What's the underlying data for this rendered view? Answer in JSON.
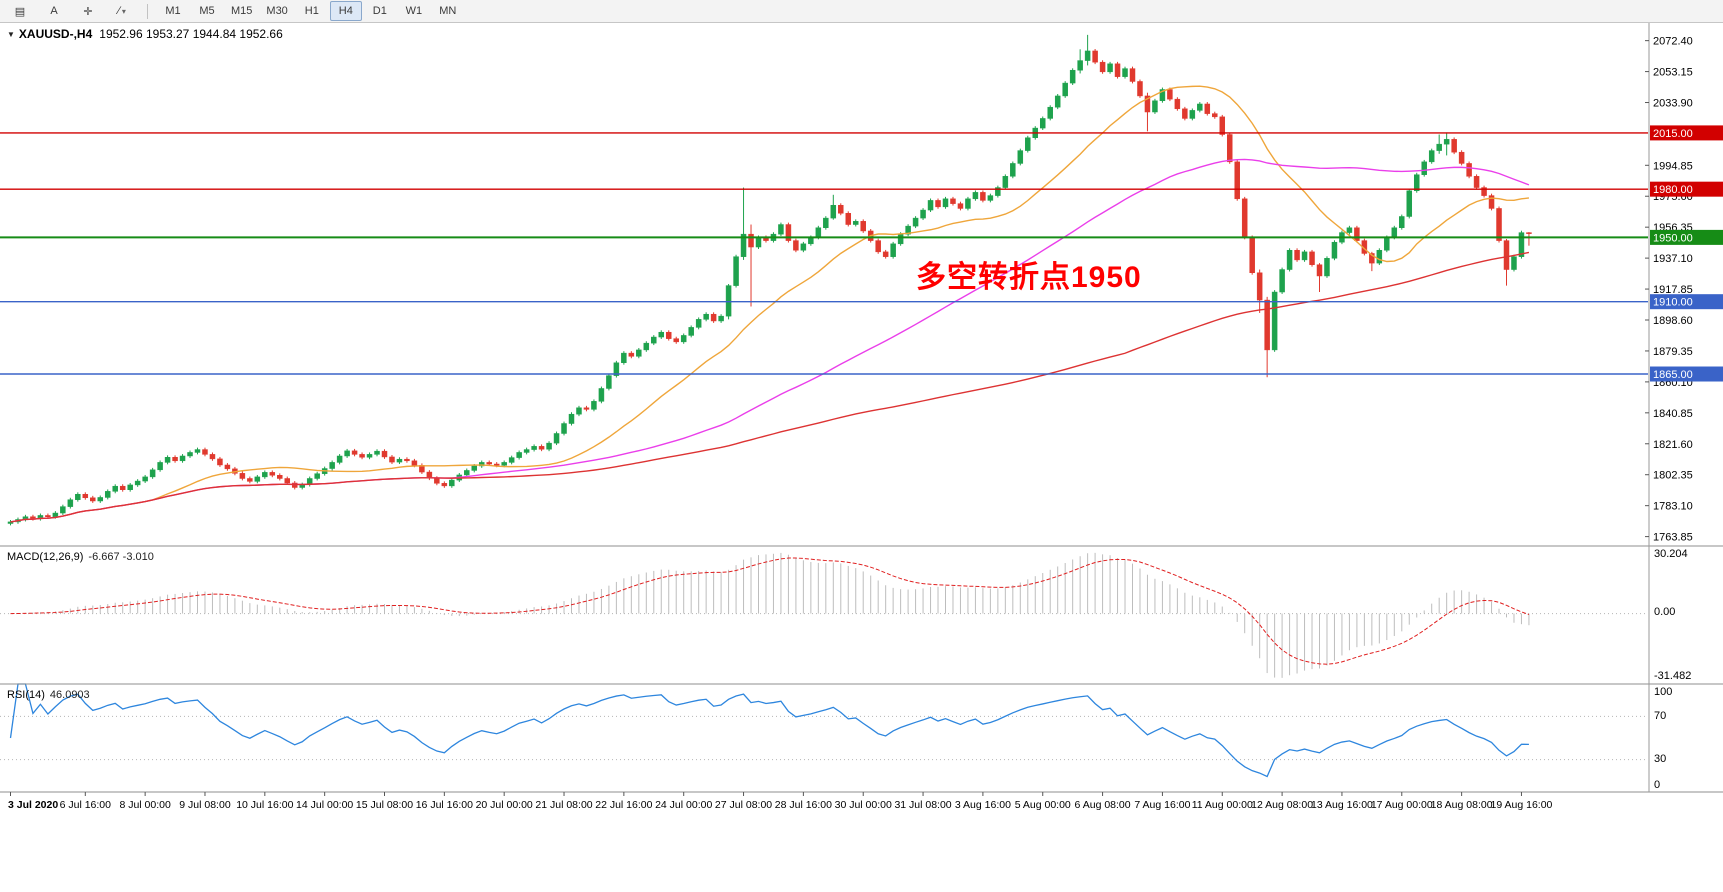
{
  "toolbar": {
    "icons": [
      {
        "name": "chart-list-icon",
        "glyph": "▤"
      },
      {
        "name": "text-a-icon",
        "glyph": "A"
      },
      {
        "name": "crosshair-icon",
        "glyph": "✛"
      },
      {
        "name": "line-studies-icon",
        "glyph": "∕",
        "caret": "▾"
      }
    ],
    "timeframes": [
      "M1",
      "M5",
      "M15",
      "M30",
      "H1",
      "H4",
      "D1",
      "W1",
      "MN"
    ],
    "active_timeframe": "H4"
  },
  "main": {
    "symbol_title": "XAUUSD-,H4",
    "ohlc": "1952.96 1953.27 1944.84 1952.66",
    "collapse_arrow": "▼",
    "annotation": "多空转折点1950",
    "annotation_color": "#ff0000"
  },
  "macd_panel": {
    "label": "MACD(12,26,9)",
    "values": "-6.667 -3.010",
    "scale_top": "30.204",
    "scale_zero": "0.00",
    "scale_bottom": "-31.482"
  },
  "rsi_panel": {
    "label": "RSI(14)",
    "value": "46.0903",
    "scale_100": "100",
    "scale_70": "70",
    "scale_30": "30",
    "scale_0": "0"
  },
  "chart_data": {
    "type": "candlestick",
    "symbol": "XAUUSD-",
    "timeframe": "H4",
    "colors": {
      "bull": "#1ea24d",
      "bear": "#e0392e",
      "macd_histogram": "#bdbdbd",
      "macd_signal": "#e02020",
      "rsi_line": "#2e86de",
      "dotted_level": "#b5b5b5"
    },
    "price_axis": {
      "min": 1758,
      "max": 2084,
      "ticks": [
        2072.4,
        2053.15,
        2033.9,
        1994.85,
        1975.6,
        1956.35,
        1937.1,
        1917.85,
        1898.6,
        1879.35,
        1860.1,
        1840.85,
        1821.6,
        1802.35,
        1783.1,
        1763.85
      ]
    },
    "levels": [
      {
        "value": 2015.0,
        "label": "2015.00",
        "color": "#d20000",
        "width": 1.4
      },
      {
        "value": 1980.0,
        "label": "1980.00",
        "color": "#d20000",
        "width": 1.4
      },
      {
        "value": 1950.0,
        "label": "1950.00",
        "color": "#168c16",
        "width": 2
      },
      {
        "value": 1910.0,
        "label": "1910.00",
        "color": "#3a63c8",
        "width": 1.4
      },
      {
        "value": 1865.0,
        "label": "1865.00",
        "color": "#3a63c8",
        "width": 1.4
      }
    ],
    "moving_averages": [
      {
        "name": "ma-fast",
        "period": 20,
        "color": "#efa63b"
      },
      {
        "name": "ma-mid",
        "period": 60,
        "color": "#ea3fea"
      },
      {
        "name": "ma-slow",
        "period": 150,
        "color": "#dd3333"
      }
    ],
    "macd": {
      "fast": 12,
      "slow": 26,
      "signal": 9,
      "scale_max": 30.204,
      "scale_min": -31.482
    },
    "rsi": {
      "period": 14,
      "levels": [
        70,
        30
      ]
    },
    "time_axis": [
      [
        0,
        "3 Jul 2020"
      ],
      [
        10,
        "6 Jul 16:00"
      ],
      [
        18,
        "8 Jul 00:00"
      ],
      [
        26,
        "9 Jul 08:00"
      ],
      [
        34,
        "10 Jul 16:00"
      ],
      [
        42,
        "14 Jul 00:00"
      ],
      [
        50,
        "15 Jul 08:00"
      ],
      [
        58,
        "16 Jul 16:00"
      ],
      [
        66,
        "20 Jul 00:00"
      ],
      [
        74,
        "21 Jul 08:00"
      ],
      [
        82,
        "22 Jul 16:00"
      ],
      [
        90,
        "24 Jul 00:00"
      ],
      [
        98,
        "27 Jul 08:00"
      ],
      [
        106,
        "28 Jul 16:00"
      ],
      [
        114,
        "30 Jul 00:00"
      ],
      [
        122,
        "31 Jul 08:00"
      ],
      [
        130,
        "3 Aug 16:00"
      ],
      [
        138,
        "5 Aug 00:00"
      ],
      [
        146,
        "6 Aug 08:00"
      ],
      [
        154,
        "7 Aug 16:00"
      ],
      [
        162,
        "11 Aug 00:00"
      ],
      [
        170,
        "12 Aug 08:00"
      ],
      [
        178,
        "13 Aug 16:00"
      ],
      [
        186,
        "17 Aug 00:00"
      ],
      [
        194,
        "18 Aug 08:00"
      ],
      [
        202,
        "19 Aug 16:00"
      ]
    ],
    "candles": {
      "open0": 1772.0,
      "closes": [
        1773,
        1774.5,
        1776.2,
        1775,
        1777,
        1776.2,
        1778.5,
        1782.5,
        1786.8,
        1790.2,
        1788,
        1786,
        1788.2,
        1792,
        1795.2,
        1793,
        1796,
        1798.4,
        1801,
        1805.4,
        1810,
        1813.2,
        1811,
        1814,
        1816.2,
        1818,
        1815,
        1812.2,
        1808.4,
        1806,
        1803.2,
        1800,
        1798.2,
        1801,
        1803.8,
        1802,
        1800,
        1797.2,
        1794.4,
        1796.2,
        1800,
        1803,
        1806.2,
        1810,
        1814,
        1817.2,
        1815,
        1813.2,
        1815,
        1817,
        1813.4,
        1810.2,
        1812,
        1811,
        1808.2,
        1804,
        1800.2,
        1797,
        1795.4,
        1799,
        1802.2,
        1805,
        1807.8,
        1810,
        1809,
        1808.2,
        1810,
        1813,
        1816.2,
        1818,
        1820,
        1818.2,
        1822,
        1828,
        1834.2,
        1840,
        1844,
        1843,
        1848,
        1856,
        1864,
        1872,
        1878,
        1876,
        1880,
        1884.2,
        1888,
        1891,
        1887,
        1885,
        1889,
        1894,
        1899,
        1902.2,
        1898,
        1901,
        1920,
        1938,
        1952,
        1944,
        1950,
        1948,
        1952,
        1958,
        1948,
        1942,
        1946,
        1950,
        1956,
        1962,
        1970,
        1965,
        1958,
        1960,
        1954,
        1948,
        1941,
        1938,
        1946,
        1952,
        1957,
        1962,
        1967,
        1973,
        1969,
        1974,
        1971,
        1968,
        1974,
        1978,
        1973,
        1976,
        1981,
        1988,
        1996,
        2004,
        2012,
        2018,
        2024,
        2031,
        2038,
        2046,
        2054,
        2060,
        2066,
        2059,
        2053,
        2058,
        2050,
        2055,
        2047,
        2038,
        2028,
        2035,
        2042,
        2036,
        2030,
        2024,
        2029,
        2033,
        2027,
        2025,
        2014,
        1997,
        1974,
        1950,
        1928,
        1911,
        1880,
        1916,
        1930,
        1942,
        1936,
        1941,
        1933,
        1926,
        1937,
        1947,
        1953,
        1956,
        1948,
        1940,
        1934,
        1942,
        1950,
        1956,
        1963,
        1979,
        1989,
        1997,
        2004,
        2008,
        2011,
        2003,
        1996,
        1988,
        1981,
        1976,
        1968,
        1948,
        1930,
        1938,
        1952.96,
        1952.66
      ],
      "wick_overrides": {
        "96": [
          1921,
          1899
        ],
        "98": [
          1981,
          1936
        ],
        "99": [
          1958,
          1907
        ],
        "110": [
          1976.5,
          1961
        ],
        "143": [
          2067,
          2052
        ],
        "144": [
          2076,
          2057
        ],
        "152": [
          2040,
          2016
        ],
        "167": [
          1930,
          1903
        ],
        "168": [
          1913,
          1863
        ],
        "175": [
          1934,
          1916
        ],
        "182": [
          1941,
          1929
        ],
        "191": [
          2014,
          2002
        ],
        "192": [
          2015.3,
          2001
        ],
        "200": [
          1949,
          1920
        ],
        "203": [
          1953.27,
          1944.84
        ]
      }
    }
  }
}
